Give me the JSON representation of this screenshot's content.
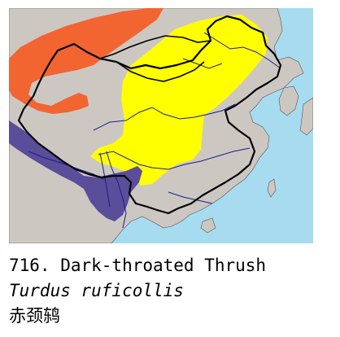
{
  "caption": {
    "number_title": "716. Dark-throated Thrush",
    "scientific_name": "Turdus ruficollis",
    "chinese_name": "赤颈鸫"
  },
  "map": {
    "colors": {
      "sea": "#a7dcf0",
      "land": "#cdc7c2",
      "breeding": "#f26430",
      "winter": "#ffff00",
      "resident": "#5a4d9a",
      "rivers": "#1a1f8c",
      "border": "#000000"
    }
  }
}
